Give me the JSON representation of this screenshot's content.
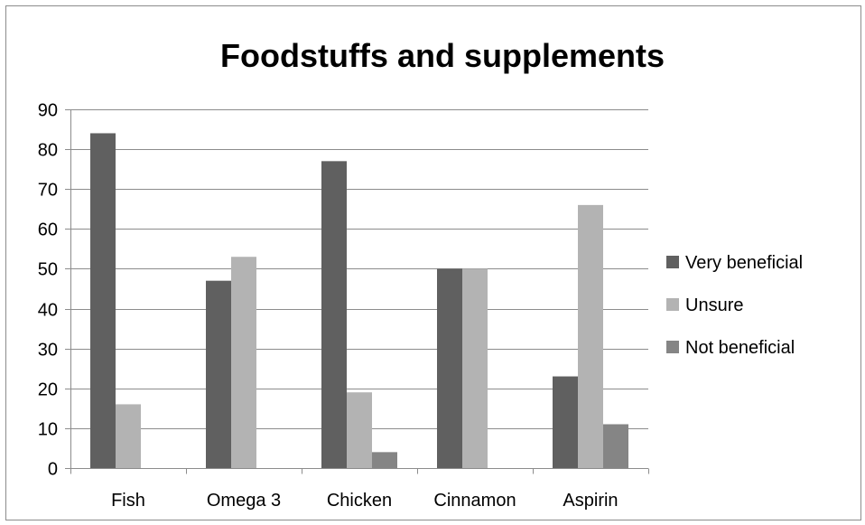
{
  "chart_data": {
    "type": "bar",
    "title": "Foodstuffs and supplements",
    "xlabel": "",
    "ylabel": "",
    "categories": [
      "Fish",
      "Omega 3",
      "Chicken",
      "Cinnamon",
      "Aspirin"
    ],
    "series": [
      {
        "name": "Very beneficial",
        "values": [
          84,
          47,
          77,
          50,
          23
        ],
        "color": "#606060"
      },
      {
        "name": "Unsure",
        "values": [
          16,
          53,
          19,
          50,
          66
        ],
        "color": "#b3b3b3"
      },
      {
        "name": "Not beneficial",
        "values": [
          0,
          0,
          4,
          0,
          11
        ],
        "color": "#858585"
      }
    ],
    "ylim": [
      0,
      90
    ],
    "yticks": [
      0,
      10,
      20,
      30,
      40,
      50,
      60,
      70,
      80,
      90
    ],
    "grid": true,
    "legend_position": "right"
  }
}
